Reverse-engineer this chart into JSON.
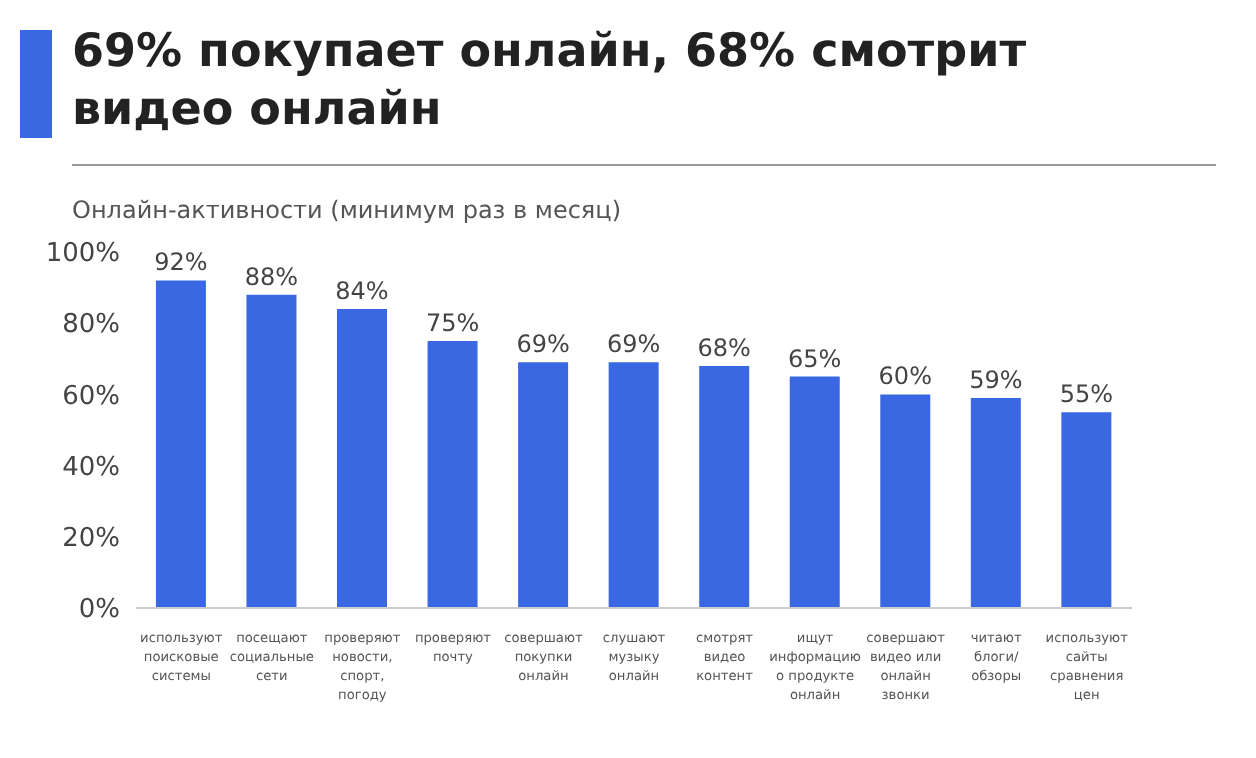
{
  "chart_data": {
    "type": "bar",
    "title": "69% покупает онлайн, 68% смотрит видео онлайн",
    "subtitle": "Онлайн-активности (минимум раз в месяц)",
    "categories": [
      "используют поисковые системы",
      "посещают социальные сети",
      "проверяют новости, спорт, погоду",
      "проверяют почту",
      "совершают покупки онлайн",
      "слушают музыку онлайн",
      "смотрят видео контент",
      "ищут информацию о продукте онлайн",
      "совершают видео или онлайн звонки",
      "читают блоги/ обзоры",
      "используют сайты сравнения цен"
    ],
    "values": [
      92,
      88,
      84,
      75,
      69,
      69,
      68,
      65,
      60,
      59,
      55
    ],
    "value_labels": [
      "92%",
      "88%",
      "84%",
      "75%",
      "69%",
      "69%",
      "68%",
      "65%",
      "60%",
      "59%",
      "55%"
    ],
    "color": "#3a68e3",
    "ylim": [
      0,
      100
    ],
    "yticks": [
      {
        "value": 0,
        "label": "0%"
      },
      {
        "value": 20,
        "label": "20%"
      },
      {
        "value": 40,
        "label": "40%"
      },
      {
        "value": 60,
        "label": "60%"
      },
      {
        "value": 80,
        "label": "80%"
      },
      {
        "value": 100,
        "label": "100%"
      }
    ],
    "grid": false
  }
}
